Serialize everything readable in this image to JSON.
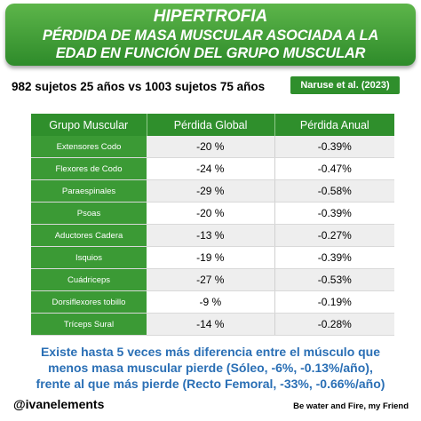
{
  "header": {
    "line1": "HIPERTROFIA",
    "line2": "PÉRDIDA DE MASA MUSCULAR ASOCIADA A LA",
    "line3": "EDAD EN FUNCIÓN DEL GRUPO MUSCULAR"
  },
  "subjects": "982 sujetos 25 años vs 1003 sujetos 75 años",
  "citation": "Naruse et al. (2023)",
  "table": {
    "headers": [
      "Grupo Muscular",
      "Pérdida Global",
      "Pérdida Anual"
    ],
    "rows": [
      {
        "muscle": "Extensores Codo",
        "global": "-20 %",
        "annual": "-0.39%"
      },
      {
        "muscle": "Flexores de Codo",
        "global": "-24 %",
        "annual": "-0.47%"
      },
      {
        "muscle": "Paraespinales",
        "global": "-29 %",
        "annual": "-0.58%"
      },
      {
        "muscle": "Psoas",
        "global": "-20 %",
        "annual": "-0.39%"
      },
      {
        "muscle": "Aductores Cadera",
        "global": "-13 %",
        "annual": "-0.27%"
      },
      {
        "muscle": "Isquios",
        "global": "-19 %",
        "annual": "-0.39%"
      },
      {
        "muscle": "Cuádriceps",
        "global": "-27 %",
        "annual": "-0.53%"
      },
      {
        "muscle": "Dorsiflexores tobillo",
        "global": "-9 %",
        "annual": "-0.19%"
      },
      {
        "muscle": "Tríceps Sural",
        "global": "-14 %",
        "annual": "-0.28%"
      }
    ]
  },
  "conclusion": {
    "line1": "Existe hasta 5 veces más diferencia entre el músculo que",
    "line2": "menos masa muscular pierde (Sóleo, -6%, -0.13%/año),",
    "line3": "frente al que más pierde (Recto Femoral, -33%, -0.66%/año)"
  },
  "footer": {
    "handle": "@ivanelements",
    "motto": "Be water and Fire, my Friend"
  },
  "colors": {
    "accent_green": "#2f8f2c",
    "conclusion_blue": "#2a6fb5"
  }
}
